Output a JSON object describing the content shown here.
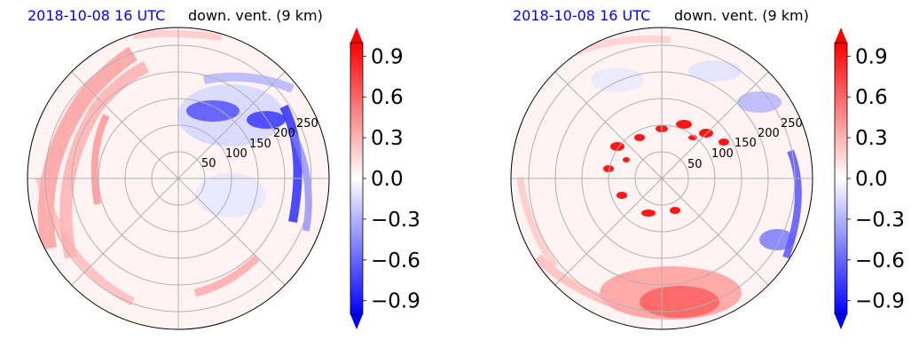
{
  "chart_data": [
    {
      "type": "heatmap",
      "time_label": "2018-10-08 16 UTC",
      "title": "down. vent. (9 km)",
      "range_rings": [
        50,
        100,
        150,
        200,
        250
      ],
      "radial_spokes_deg": [
        0,
        45,
        90,
        135,
        180,
        225,
        270,
        315
      ],
      "colorbar": {
        "ticks": [
          0.9,
          0.6,
          0.3,
          0.0,
          -0.3,
          -0.6,
          -0.9
        ],
        "tick_labels": [
          "0.9",
          "0.6",
          "0.3",
          "0.0",
          "−0.3",
          "−0.6",
          "−0.9"
        ],
        "min": -1.0,
        "max": 1.0,
        "extend": "both",
        "colormap": "bwr"
      },
      "features": {
        "positive_bands": "curved bands west and south-west of center",
        "negative_region": "north-east to east quadrant"
      }
    },
    {
      "type": "heatmap",
      "time_label": "2018-10-08 16 UTC",
      "title": "down. vent. (9 km)",
      "range_rings": [
        50,
        100,
        150,
        200,
        250
      ],
      "radial_spokes_deg": [
        0,
        45,
        90,
        135,
        180,
        225,
        270,
        315
      ],
      "colorbar": {
        "ticks": [
          0.9,
          0.6,
          0.3,
          0.0,
          -0.3,
          -0.6,
          -0.9
        ],
        "tick_labels": [
          "0.9",
          "0.6",
          "0.3",
          "0.0",
          "−0.3",
          "−0.6",
          "−0.9"
        ],
        "min": -1.0,
        "max": 1.0,
        "extend": "both",
        "colormap": "bwr"
      },
      "features": {
        "positive_bands": "ring of cells around center and band in the south",
        "negative_region": "east edge"
      }
    }
  ],
  "colors": {
    "positive": "#ff0000",
    "negative": "#0000ff",
    "neutral": "#ffffff",
    "grid": "#b0b0b0",
    "time_label": "#0000ff"
  }
}
